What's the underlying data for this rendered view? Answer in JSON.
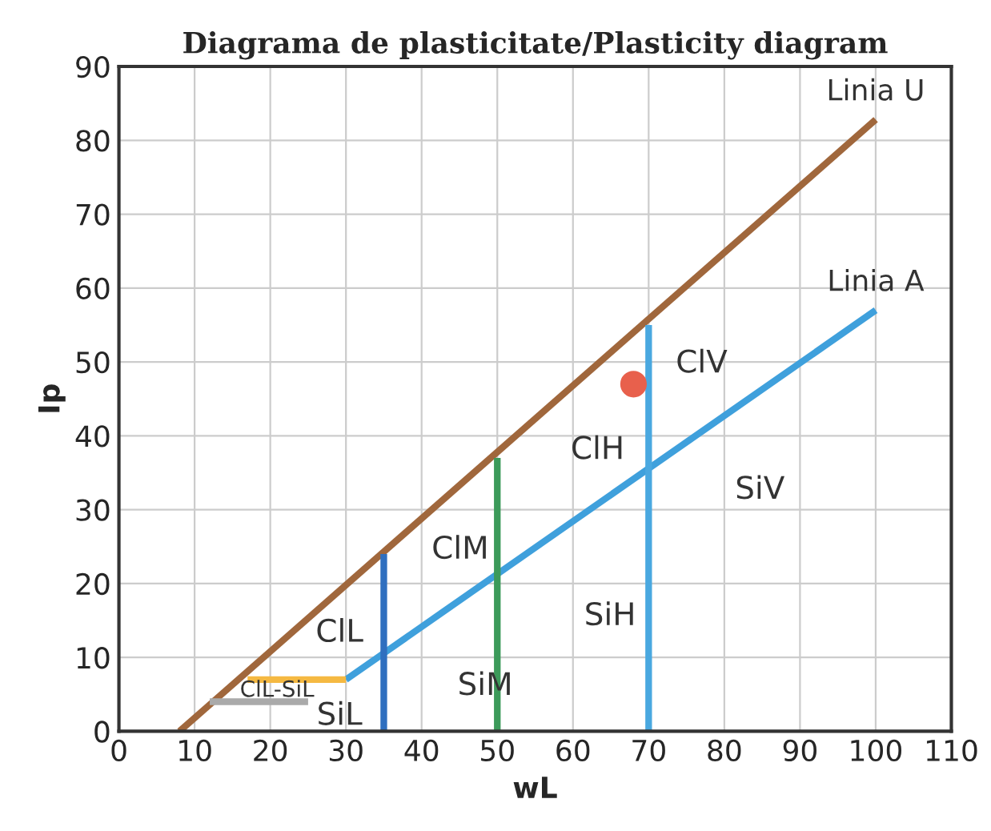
{
  "chart_data": {
    "type": "line",
    "title": "Diagrama de plasticitate/Plasticity diagram",
    "xlabel": "wL",
    "ylabel": "Ip",
    "xlim": [
      0,
      110
    ],
    "ylim": [
      0,
      90
    ],
    "xticks": [
      0,
      10,
      20,
      30,
      40,
      50,
      60,
      70,
      80,
      90,
      100,
      110
    ],
    "yticks": [
      0,
      10,
      20,
      30,
      40,
      50,
      60,
      70,
      80,
      90
    ],
    "grid": true,
    "line_style": "solid",
    "series": [
      {
        "name": "Linia U",
        "color": "#a0673c",
        "x": [
          8,
          100
        ],
        "values": [
          0,
          82.8
        ]
      },
      {
        "name": "Linia A",
        "color": "#3fa0dc",
        "x": [
          30,
          100
        ],
        "values": [
          7,
          57
        ]
      },
      {
        "color": "#f5b942",
        "x": [
          17,
          30
        ],
        "values": [
          7,
          7
        ]
      },
      {
        "color": "#aaaaaa",
        "x": [
          12,
          25
        ],
        "values": [
          4,
          4
        ]
      },
      {
        "color": "#2f6fbf",
        "x": [
          35,
          35
        ],
        "values": [
          0,
          24
        ]
      },
      {
        "color": "#3c9a5a",
        "x": [
          50,
          50
        ],
        "values": [
          0,
          37
        ]
      },
      {
        "color": "#4aa8e0",
        "x": [
          70,
          70
        ],
        "values": [
          0,
          55
        ]
      },
      {
        "type": "scatter",
        "color": "#e8604c",
        "x": [
          68
        ],
        "values": [
          47
        ]
      }
    ],
    "annotations": [
      "ClV",
      "SiV",
      "ClH",
      "SiH",
      "ClM",
      "SiM",
      "ClL",
      "SiL",
      "ClL-SiL"
    ]
  }
}
